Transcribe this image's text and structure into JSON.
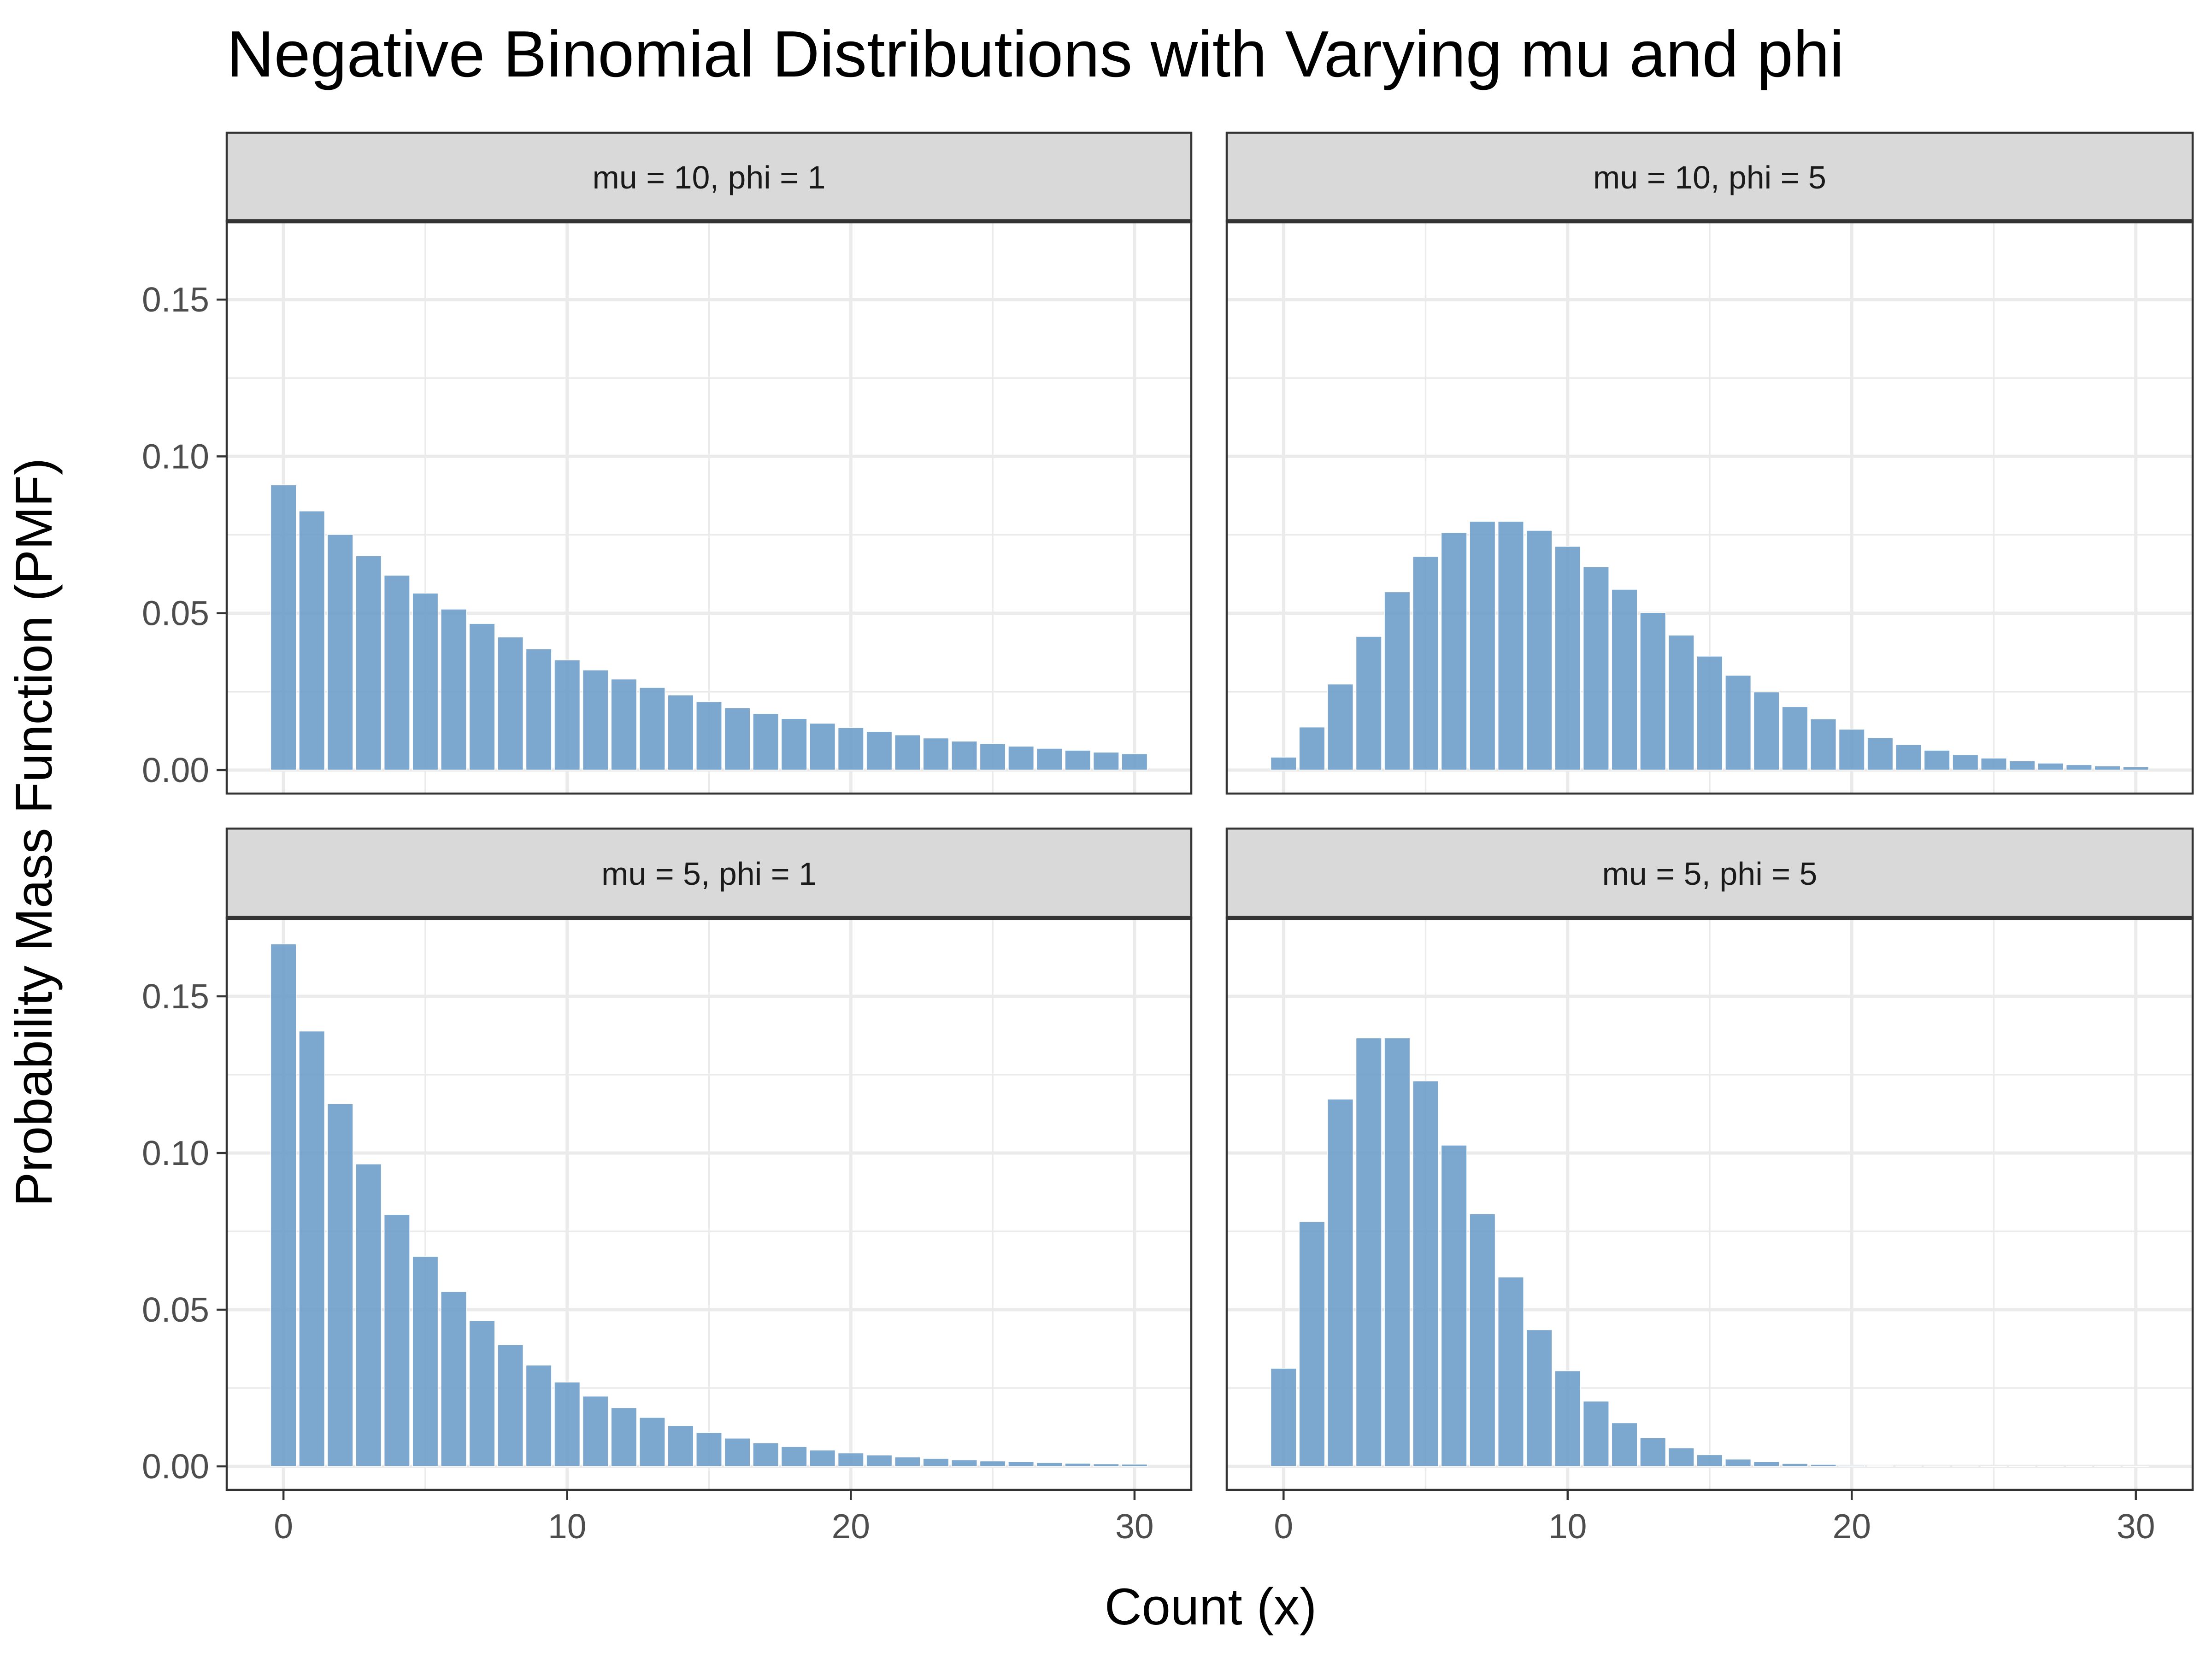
{
  "chart_data": {
    "type": "bar",
    "title": "Negative Binomial Distributions with Varying mu and phi",
    "xlabel": "Count (x)",
    "ylabel": "Probability Mass Function (PMF)",
    "xlim": [
      -2,
      32
    ],
    "ylim": [
      -0.0075,
      0.175
    ],
    "x_ticks": [
      0,
      10,
      20,
      30
    ],
    "y_ticks": [
      0.0,
      0.05,
      0.1,
      0.15
    ],
    "x_tick_labels": [
      "0",
      "10",
      "20",
      "30"
    ],
    "y_tick_labels": [
      "0.00",
      "0.05",
      "0.10",
      "0.15"
    ],
    "bar_color": "#6a9bc8",
    "grid": true,
    "facets": [
      {
        "label": "mu = 10, phi = 1",
        "x": [
          0,
          1,
          2,
          3,
          4,
          5,
          6,
          7,
          8,
          9,
          10,
          11,
          12,
          13,
          14,
          15,
          16,
          17,
          18,
          19,
          20,
          21,
          22,
          23,
          24,
          25,
          26,
          27,
          28,
          29,
          30
        ],
        "values": [
          0.0909,
          0.0826,
          0.0751,
          0.0683,
          0.0621,
          0.0564,
          0.0513,
          0.0467,
          0.0424,
          0.0386,
          0.0351,
          0.0319,
          0.029,
          0.0263,
          0.0239,
          0.0218,
          0.0198,
          0.018,
          0.0164,
          0.0149,
          0.0135,
          0.0123,
          0.0112,
          0.0102,
          0.0092,
          0.0084,
          0.0076,
          0.0069,
          0.0063,
          0.0057,
          0.0052
        ]
      },
      {
        "label": "mu = 10, phi = 5",
        "x": [
          0,
          1,
          2,
          3,
          4,
          5,
          6,
          7,
          8,
          9,
          10,
          11,
          12,
          13,
          14,
          15,
          16,
          17,
          18,
          19,
          20,
          21,
          22,
          23,
          24,
          25,
          26,
          27,
          28,
          29,
          30
        ],
        "values": [
          0.0041,
          0.0137,
          0.0274,
          0.0426,
          0.0568,
          0.0681,
          0.0757,
          0.0793,
          0.0793,
          0.0764,
          0.0713,
          0.0648,
          0.0576,
          0.0502,
          0.043,
          0.0363,
          0.0302,
          0.0249,
          0.0202,
          0.0163,
          0.013,
          0.0103,
          0.0081,
          0.0063,
          0.0049,
          0.0038,
          0.0029,
          0.0022,
          0.0017,
          0.0013,
          0.001
        ]
      },
      {
        "label": "mu = 5, phi = 1",
        "x": [
          0,
          1,
          2,
          3,
          4,
          5,
          6,
          7,
          8,
          9,
          10,
          11,
          12,
          13,
          14,
          15,
          16,
          17,
          18,
          19,
          20,
          21,
          22,
          23,
          24,
          25,
          26,
          27,
          28,
          29,
          30
        ],
        "values": [
          0.1667,
          0.1389,
          0.1157,
          0.0965,
          0.0804,
          0.067,
          0.0558,
          0.0465,
          0.0388,
          0.0323,
          0.0269,
          0.0224,
          0.0187,
          0.0156,
          0.013,
          0.0108,
          0.009,
          0.0075,
          0.0063,
          0.0052,
          0.0043,
          0.0036,
          0.003,
          0.0025,
          0.0021,
          0.0017,
          0.0015,
          0.0012,
          0.001,
          0.0008,
          0.0007
        ]
      },
      {
        "label": "mu = 5, phi = 5",
        "x": [
          0,
          1,
          2,
          3,
          4,
          5,
          6,
          7,
          8,
          9,
          10,
          11,
          12,
          13,
          14,
          15,
          16,
          17,
          18,
          19,
          20,
          21,
          22,
          23,
          24,
          25,
          26,
          27,
          28,
          29,
          30
        ],
        "values": [
          0.0313,
          0.0781,
          0.1172,
          0.1367,
          0.1367,
          0.123,
          0.1025,
          0.0806,
          0.0604,
          0.0436,
          0.0305,
          0.0208,
          0.0139,
          0.0091,
          0.0059,
          0.0037,
          0.0023,
          0.0015,
          0.0009,
          0.0006,
          0.0003,
          0.0002,
          0.0001,
          0.0001,
          0.0001,
          0.0,
          0.0,
          0.0,
          0.0,
          0.0,
          0.0
        ]
      }
    ]
  }
}
